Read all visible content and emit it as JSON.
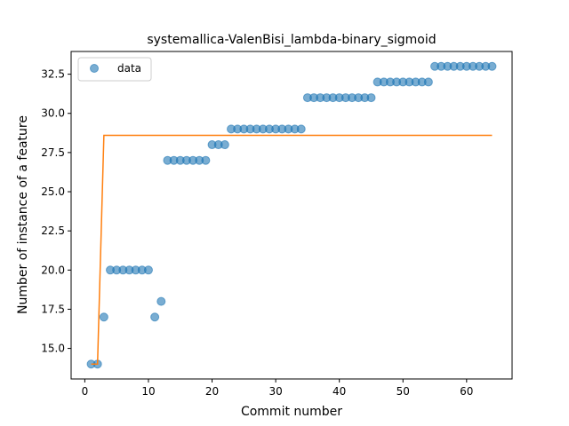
{
  "chart_data": {
    "type": "scatter",
    "title": "systemallica-ValenBisi_lambda-binary_sigmoid",
    "xlabel": "Commit number",
    "ylabel": "Number of instance of a feature",
    "xlim": [
      -2.15,
      67.15
    ],
    "ylim": [
      13.05,
      33.95
    ],
    "xticks": [
      0,
      10,
      20,
      30,
      40,
      50,
      60
    ],
    "yticks": [
      15.0,
      17.5,
      20.0,
      22.5,
      25.0,
      27.5,
      30.0,
      32.5
    ],
    "ytick_labels": [
      "15.0",
      "17.5",
      "20.0",
      "22.5",
      "25.0",
      "27.5",
      "30.0",
      "32.5"
    ],
    "grid": false,
    "legend": {
      "position": "top-left",
      "entries": [
        "data"
      ]
    },
    "colors": {
      "data": "#1f77b4",
      "fit": "#ff7f0e"
    },
    "series": [
      {
        "name": "data",
        "marker": "circle",
        "x": [
          1,
          2,
          3,
          4,
          5,
          6,
          7,
          8,
          9,
          10,
          11,
          12,
          13,
          14,
          15,
          16,
          17,
          18,
          19,
          20,
          21,
          22,
          23,
          24,
          25,
          26,
          27,
          28,
          29,
          30,
          31,
          32,
          33,
          34,
          35,
          36,
          37,
          38,
          39,
          40,
          41,
          42,
          43,
          44,
          45,
          46,
          47,
          48,
          49,
          50,
          51,
          52,
          53,
          54,
          55,
          56,
          57,
          58,
          59,
          60,
          61,
          62,
          63,
          64
        ],
        "y": [
          14,
          14,
          17,
          20,
          20,
          20,
          20,
          20,
          20,
          20,
          17,
          18,
          27,
          27,
          27,
          27,
          27,
          27,
          27,
          28,
          28,
          28,
          29,
          29,
          29,
          29,
          29,
          29,
          29,
          29,
          29,
          29,
          29,
          29,
          31,
          31,
          31,
          31,
          31,
          31,
          31,
          31,
          31,
          31,
          31,
          32,
          32,
          32,
          32,
          32,
          32,
          32,
          32,
          32,
          33,
          33,
          33,
          33,
          33,
          33,
          33,
          33,
          33,
          33
        ]
      },
      {
        "line": true,
        "x": [
          1,
          2,
          3,
          64
        ],
        "y": [
          14,
          14,
          28.6,
          28.6
        ]
      }
    ]
  }
}
